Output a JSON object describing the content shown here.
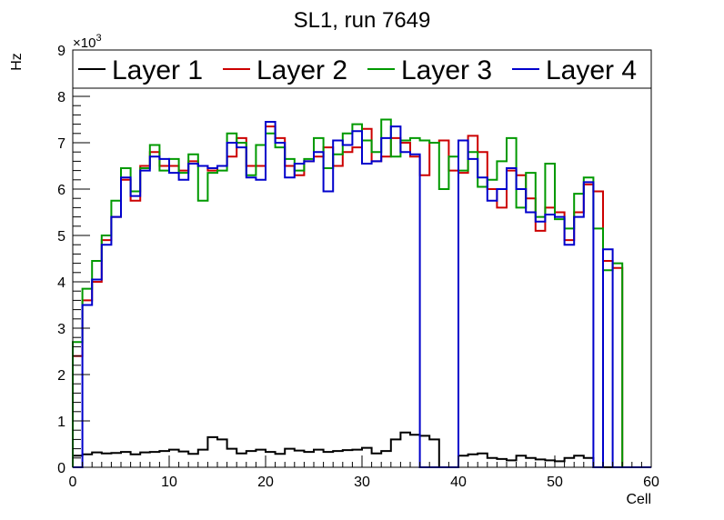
{
  "chart_data": {
    "type": "step-histogram",
    "title": "SL1, run 7649",
    "xlabel": "Cell",
    "ylabel": "Hz",
    "y_multiplier": "×10",
    "y_multiplier_exp": "3",
    "xlim": [
      0,
      60
    ],
    "ylim": [
      0,
      9000
    ],
    "x_ticks": [
      0,
      10,
      20,
      30,
      40,
      50,
      60
    ],
    "y_ticks": [
      0,
      1,
      2,
      3,
      4,
      5,
      6,
      7,
      8,
      9
    ],
    "grid": false,
    "legend": "top",
    "bin_edges_start": 0,
    "bin_width": 1,
    "series": [
      {
        "name": "Layer 1",
        "color": "#000000",
        "values": [
          250,
          280,
          320,
          300,
          310,
          330,
          280,
          320,
          330,
          350,
          380,
          340,
          290,
          380,
          650,
          600,
          400,
          300,
          350,
          380,
          330,
          290,
          400,
          360,
          330,
          380,
          330,
          350,
          370,
          380,
          420,
          300,
          350,
          600,
          750,
          700,
          680,
          600,
          0,
          0,
          250,
          280,
          300,
          200,
          180,
          150,
          250,
          200,
          170,
          150,
          130,
          200,
          250,
          200,
          0,
          0,
          0,
          0,
          0,
          0
        ]
      },
      {
        "name": "Layer 2",
        "color": "#cc0000",
        "values": [
          2400,
          3600,
          4000,
          4900,
          5400,
          6200,
          5750,
          6500,
          6800,
          6500,
          6500,
          6400,
          6600,
          6500,
          6400,
          6500,
          6700,
          7100,
          6500,
          6500,
          7350,
          7100,
          6500,
          6300,
          6600,
          6700,
          6900,
          6500,
          6800,
          6900,
          7300,
          6600,
          6700,
          7100,
          7000,
          6700,
          6300,
          7000,
          7050,
          6400,
          6350,
          7150,
          6800,
          6000,
          5600,
          6400,
          6300,
          5800,
          5100,
          5600,
          5500,
          4900,
          5500,
          6100,
          5950,
          4450,
          4300,
          0,
          0,
          0
        ]
      },
      {
        "name": "Layer 3",
        "color": "#009900",
        "values": [
          2700,
          3850,
          4450,
          5000,
          5750,
          6450,
          5950,
          6450,
          6950,
          6400,
          6650,
          6350,
          6750,
          5750,
          6350,
          6400,
          7200,
          7000,
          6300,
          6950,
          7200,
          6900,
          6650,
          6400,
          6650,
          7100,
          6450,
          6750,
          7200,
          7400,
          7050,
          6800,
          7500,
          6700,
          7050,
          7100,
          7050,
          7000,
          6000,
          6700,
          6400,
          6800,
          6050,
          6200,
          6600,
          7100,
          5600,
          6350,
          5400,
          6550,
          5350,
          5150,
          5900,
          6250,
          5150,
          4250,
          4400,
          0,
          0,
          0
        ]
      },
      {
        "name": "Layer 4",
        "color": "#0000cc",
        "values": [
          0,
          3500,
          4050,
          4800,
          5400,
          6250,
          5850,
          6400,
          6700,
          6650,
          6350,
          6200,
          6550,
          6500,
          6450,
          6500,
          7000,
          6900,
          6250,
          6200,
          7450,
          7000,
          6250,
          6550,
          6600,
          6800,
          5950,
          7050,
          6950,
          7250,
          6550,
          6600,
          7100,
          7350,
          6800,
          6750,
          0,
          0,
          0,
          0,
          7050,
          6650,
          6250,
          5750,
          6000,
          6450,
          6000,
          5500,
          5300,
          5450,
          5400,
          4800,
          5400,
          6150,
          0,
          4700,
          0,
          0,
          0,
          0
        ]
      }
    ]
  }
}
